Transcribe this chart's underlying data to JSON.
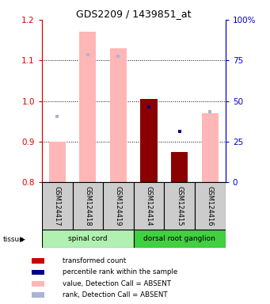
{
  "title": "GDS2209 / 1439851_at",
  "samples": [
    "GSM124417",
    "GSM124418",
    "GSM124419",
    "GSM124414",
    "GSM124415",
    "GSM124416"
  ],
  "ylim": [
    0.8,
    1.2
  ],
  "yticks_left": [
    0.8,
    0.9,
    1.0,
    1.1,
    1.2
  ],
  "yticks_right_vals": [
    0,
    25,
    50,
    75,
    100
  ],
  "yticks_right_labels": [
    "0",
    "25",
    "50",
    "75",
    "100%"
  ],
  "bar_bottom": 0.8,
  "absent_bar_tops": [
    0.9,
    1.17,
    1.13,
    null,
    null,
    0.97
  ],
  "present_bar_tops": [
    null,
    null,
    null,
    1.005,
    0.875,
    null
  ],
  "absent_rank_dots_y": [
    0.963,
    1.115,
    1.11,
    null,
    null,
    0.975
  ],
  "present_rank_dots_y": [
    null,
    null,
    null,
    0.985,
    0.925,
    null
  ],
  "absent_bar_color": "#ffb6b6",
  "present_bar_color": "#8b0000",
  "absent_dot_color": "#aab4d4",
  "present_dot_color": "#00008b",
  "left_axis_color": "#dd0000",
  "right_axis_color": "#0000cc",
  "tissue_groups": [
    {
      "label": "spinal cord",
      "start": 0,
      "end": 3,
      "color": "#b0f0b0"
    },
    {
      "label": "dorsal root ganglion",
      "start": 3,
      "end": 6,
      "color": "#40d040"
    }
  ],
  "legend_items": [
    {
      "color": "#cc0000",
      "label": "transformed count"
    },
    {
      "color": "#00008b",
      "label": "percentile rank within the sample"
    },
    {
      "color": "#ffb6b6",
      "label": "value, Detection Call = ABSENT"
    },
    {
      "color": "#aab4d4",
      "label": "rank, Detection Call = ABSENT"
    }
  ]
}
